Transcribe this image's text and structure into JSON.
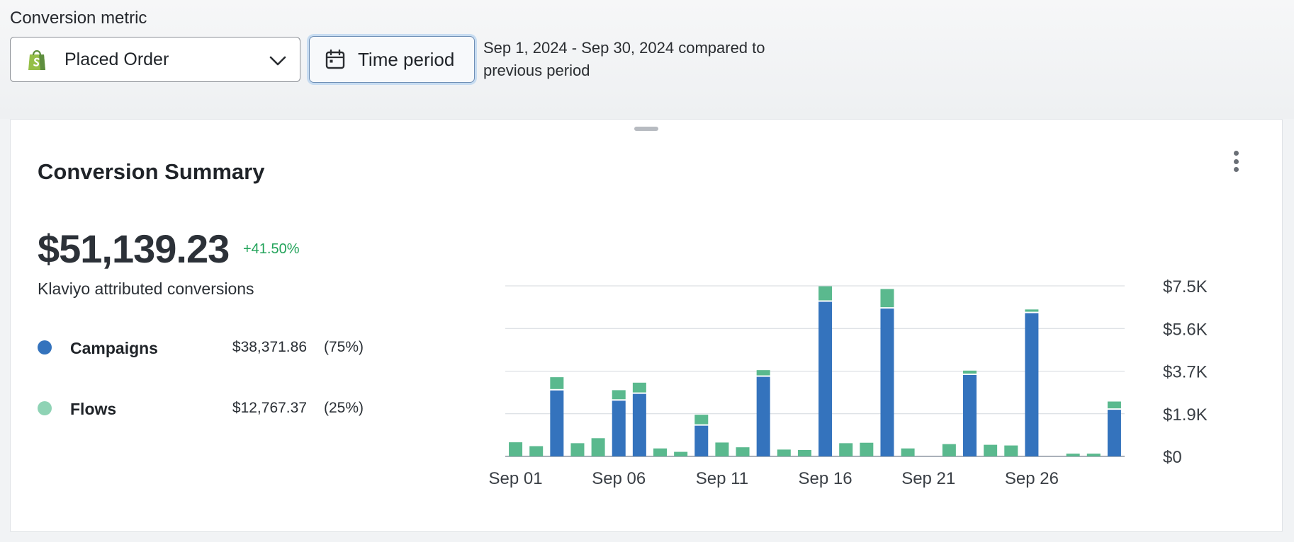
{
  "header": {
    "metric_label": "Conversion metric",
    "metric_value": "Placed Order",
    "time_button": "Time period",
    "period_text": "Sep 1, 2024 - Sep 30, 2024 compared to previous period"
  },
  "card": {
    "title": "Conversion Summary",
    "total": "$51,139.23",
    "change": "+41.50%",
    "subtitle": "Klaviyo attributed conversions",
    "legend": [
      {
        "name": "Campaigns",
        "amount": "$38,371.86",
        "share": "(75%)",
        "color": "#3473bd"
      },
      {
        "name": "Flows",
        "amount": "$12,767.37",
        "share": "(25%)",
        "color": "#8fd3b5"
      }
    ]
  },
  "chart_data": {
    "type": "bar",
    "stacked": true,
    "categories": [
      "Sep 01",
      "Sep 02",
      "Sep 03",
      "Sep 04",
      "Sep 05",
      "Sep 06",
      "Sep 07",
      "Sep 08",
      "Sep 09",
      "Sep 10",
      "Sep 11",
      "Sep 12",
      "Sep 13",
      "Sep 14",
      "Sep 15",
      "Sep 16",
      "Sep 17",
      "Sep 18",
      "Sep 19",
      "Sep 20",
      "Sep 21",
      "Sep 22",
      "Sep 23",
      "Sep 24",
      "Sep 25",
      "Sep 26",
      "Sep 27",
      "Sep 28",
      "Sep 29",
      "Sep 30"
    ],
    "x_tick_labels": [
      "Sep 01",
      "Sep 06",
      "Sep 11",
      "Sep 16",
      "Sep 21",
      "Sep 26"
    ],
    "series": [
      {
        "name": "Campaigns",
        "color": "#3473bd",
        "values": [
          0,
          0,
          2900,
          0,
          0,
          2450,
          2750,
          0,
          0,
          1350,
          0,
          0,
          3500,
          0,
          0,
          6800,
          0,
          0,
          6500,
          0,
          0,
          0,
          3580,
          0,
          0,
          6300,
          0,
          0,
          0,
          2050
        ]
      },
      {
        "name": "Flows",
        "color": "#5ab98e",
        "values": [
          620,
          450,
          520,
          580,
          800,
          400,
          430,
          350,
          200,
          420,
          610,
          400,
          230,
          300,
          280,
          620,
          580,
          600,
          800,
          350,
          0,
          540,
          130,
          510,
          480,
          100,
          0,
          120,
          120,
          300
        ]
      }
    ],
    "y_ticks": [
      "$0",
      "$1.9K",
      "$3.7K",
      "$5.6K",
      "$7.5K"
    ],
    "ylim": [
      0,
      7500
    ],
    "y_axis_position": "right",
    "grid": true
  }
}
